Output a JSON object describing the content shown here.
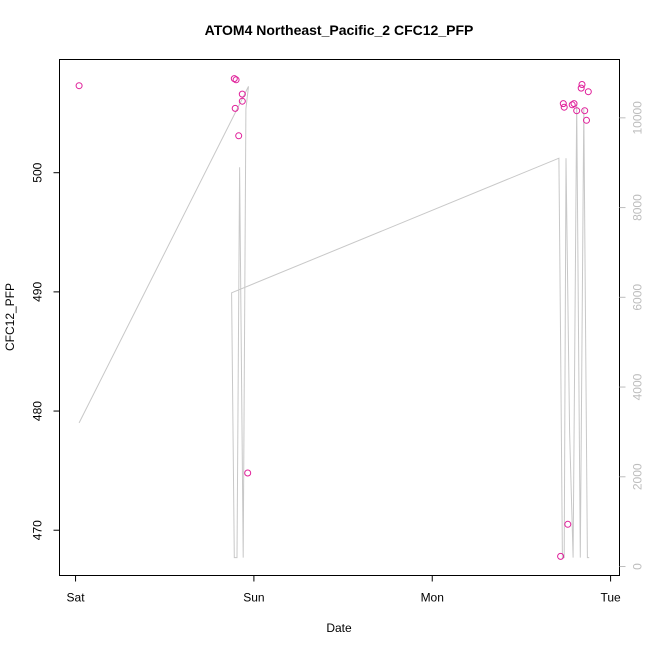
{
  "chart_data": {
    "type": "scatter",
    "title": "ATOM4 Northeast_Pacific_2 CFC12_PFP",
    "xlabel": "Date",
    "ylabel": "CFC12_PFP",
    "x_unit": "days since Sat 00:00",
    "x_ticks": [
      {
        "value": 0,
        "label": "Sat"
      },
      {
        "value": 1,
        "label": "Sun"
      },
      {
        "value": 2,
        "label": "Mon"
      },
      {
        "value": 3,
        "label": "Tue"
      }
    ],
    "xlim": [
      -0.09,
      3.05
    ],
    "ylim": [
      466.2,
      509.5
    ],
    "y_ticks": [
      470,
      480,
      490,
      500
    ],
    "y2lim": [
      -200,
      11300
    ],
    "y2_ticks": [
      0,
      2000,
      4000,
      6000,
      8000,
      10000
    ],
    "grid": false,
    "point_color": "#e0209a",
    "line_color": "#c8c8c8",
    "points": [
      {
        "x": 0.02,
        "y": 507.3
      },
      {
        "x": 0.89,
        "y": 507.9
      },
      {
        "x": 0.9,
        "y": 507.8
      },
      {
        "x": 0.895,
        "y": 505.4
      },
      {
        "x": 0.915,
        "y": 503.1
      },
      {
        "x": 0.935,
        "y": 506.6
      },
      {
        "x": 0.935,
        "y": 506.0
      },
      {
        "x": 0.965,
        "y": 474.8
      },
      {
        "x": 2.72,
        "y": 467.8
      },
      {
        "x": 2.735,
        "y": 505.8
      },
      {
        "x": 2.74,
        "y": 505.5
      },
      {
        "x": 2.76,
        "y": 470.5
      },
      {
        "x": 2.785,
        "y": 505.7
      },
      {
        "x": 2.795,
        "y": 505.8
      },
      {
        "x": 2.81,
        "y": 505.2
      },
      {
        "x": 2.835,
        "y": 507.1
      },
      {
        "x": 2.84,
        "y": 507.4
      },
      {
        "x": 2.855,
        "y": 505.2
      },
      {
        "x": 2.865,
        "y": 504.4
      },
      {
        "x": 2.875,
        "y": 506.8
      }
    ],
    "line_series": {
      "axis": "right",
      "x": [
        0.02,
        0.97,
        0.955,
        0.94,
        0.92,
        0.905,
        0.89,
        0.875,
        2.71,
        2.72,
        2.73,
        2.74,
        2.75,
        2.77,
        2.79,
        2.81,
        2.83,
        2.85,
        2.87,
        2.88
      ],
      "y": [
        3200,
        10700,
        10200,
        200,
        8900,
        200,
        200,
        6100,
        9100,
        5000,
        200,
        200,
        9100,
        3000,
        200,
        10300,
        200,
        10200,
        200,
        200
      ]
    }
  }
}
